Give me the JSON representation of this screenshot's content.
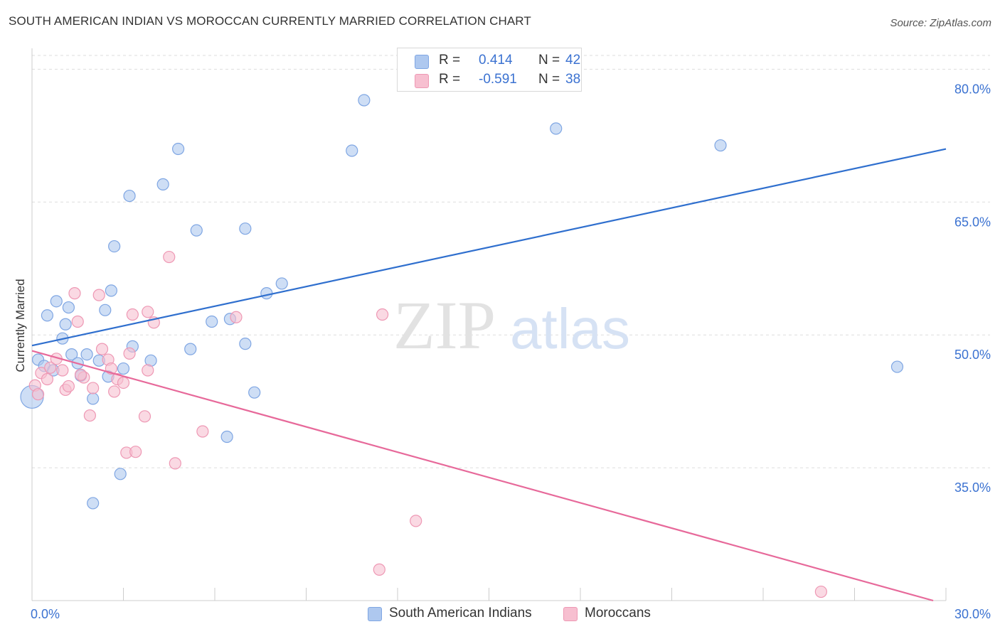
{
  "title": "SOUTH AMERICAN INDIAN VS MOROCCAN CURRENTLY MARRIED CORRELATION CHART",
  "source": "Source: ZipAtlas.com",
  "watermark": {
    "zip": "ZIP",
    "atlas": "atlas"
  },
  "legend_top": [
    {
      "r_label": "R =",
      "r_value": "0.414",
      "n_label": "N =",
      "n_value": "42"
    },
    {
      "r_label": "R =",
      "r_value": "-0.591",
      "n_label": "N =",
      "n_value": "38"
    }
  ],
  "legend_bottom": [
    "South American Indians",
    "Moroccans"
  ],
  "colors": {
    "series1_fill": "#aec8ef",
    "series1_stroke": "#7fa6e3",
    "series1_line": "#2f6fce",
    "series2_fill": "#f7bfd0",
    "series2_stroke": "#ee98b4",
    "series2_line": "#e7699a",
    "tick_label": "#3b72d1",
    "grid": "#dddddd"
  },
  "chart_data": {
    "type": "scatter",
    "title": "SOUTH AMERICAN INDIAN VS MOROCCAN CURRENTLY MARRIED CORRELATION CHART",
    "xlabel": "",
    "ylabel": "Currently Married",
    "xlim": [
      0,
      30
    ],
    "ylim": [
      20,
      83
    ],
    "x_tick_labels": [
      {
        "x": 0,
        "label": "0.0%"
      },
      {
        "x": 30,
        "label": "30.0%"
      }
    ],
    "y_ticks": [
      35,
      50,
      65,
      80
    ],
    "y_tick_labels": [
      "35.0%",
      "50.0%",
      "65.0%",
      "80.0%"
    ],
    "grid": true,
    "legend_placement": "top-center",
    "series": [
      {
        "name": "South American Indians",
        "r": 0.414,
        "n": 42,
        "trend": [
          [
            0,
            48.8
          ],
          [
            30,
            71.0
          ]
        ],
        "points": [
          [
            0.0,
            43.0,
            "lg"
          ],
          [
            0.2,
            47.2
          ],
          [
            0.4,
            46.5
          ],
          [
            0.5,
            52.2
          ],
          [
            0.7,
            46.0
          ],
          [
            0.8,
            53.8
          ],
          [
            1.0,
            49.6
          ],
          [
            1.1,
            51.2
          ],
          [
            1.2,
            53.1
          ],
          [
            1.3,
            47.8
          ],
          [
            1.5,
            46.8
          ],
          [
            1.6,
            45.4
          ],
          [
            1.8,
            47.8
          ],
          [
            2.0,
            42.8
          ],
          [
            2.2,
            47.1
          ],
          [
            2.4,
            52.8
          ],
          [
            2.5,
            45.3
          ],
          [
            2.6,
            55.0
          ],
          [
            2.7,
            60.0
          ],
          [
            2.9,
            34.3
          ],
          [
            3.0,
            46.2
          ],
          [
            3.2,
            65.7
          ],
          [
            3.3,
            48.7
          ],
          [
            3.9,
            47.1
          ],
          [
            4.3,
            67.0
          ],
          [
            4.8,
            71.0
          ],
          [
            5.2,
            48.4
          ],
          [
            5.4,
            61.8
          ],
          [
            5.9,
            51.5
          ],
          [
            6.4,
            38.5
          ],
          [
            6.5,
            51.8
          ],
          [
            7.0,
            62.0
          ],
          [
            7.0,
            49.0
          ],
          [
            7.3,
            43.5
          ],
          [
            7.7,
            54.7
          ],
          [
            8.2,
            55.8
          ],
          [
            10.5,
            70.8
          ],
          [
            10.9,
            76.5
          ],
          [
            17.2,
            73.3
          ],
          [
            22.6,
            71.4
          ],
          [
            28.4,
            46.4
          ],
          [
            2.0,
            31.0
          ]
        ]
      },
      {
        "name": "Moroccans",
        "r": -0.591,
        "n": 38,
        "trend": [
          [
            0,
            48.2
          ],
          [
            30,
            19.6
          ]
        ],
        "points": [
          [
            0.1,
            44.3
          ],
          [
            0.2,
            43.3
          ],
          [
            0.3,
            45.7
          ],
          [
            0.5,
            45.0
          ],
          [
            0.6,
            46.3
          ],
          [
            0.8,
            47.3
          ],
          [
            1.0,
            46.0
          ],
          [
            1.1,
            43.8
          ],
          [
            1.2,
            44.2
          ],
          [
            1.4,
            54.7
          ],
          [
            1.5,
            51.5
          ],
          [
            1.7,
            45.2
          ],
          [
            1.9,
            40.9
          ],
          [
            2.0,
            44.0
          ],
          [
            2.2,
            54.5
          ],
          [
            2.3,
            48.4
          ],
          [
            2.5,
            47.2
          ],
          [
            2.6,
            46.2
          ],
          [
            2.7,
            43.6
          ],
          [
            2.8,
            45.0
          ],
          [
            3.0,
            44.6
          ],
          [
            3.1,
            36.7
          ],
          [
            3.2,
            47.9
          ],
          [
            3.3,
            52.3
          ],
          [
            3.4,
            36.8
          ],
          [
            3.7,
            40.8
          ],
          [
            3.8,
            52.6
          ],
          [
            4.0,
            51.4
          ],
          [
            4.5,
            58.8
          ],
          [
            4.7,
            35.5
          ],
          [
            5.6,
            39.1
          ],
          [
            6.7,
            52.0
          ],
          [
            11.5,
            52.3
          ],
          [
            12.6,
            29.0
          ],
          [
            11.4,
            23.5
          ],
          [
            25.9,
            21.0
          ],
          [
            3.8,
            46.0
          ],
          [
            1.6,
            45.5
          ]
        ]
      }
    ]
  }
}
